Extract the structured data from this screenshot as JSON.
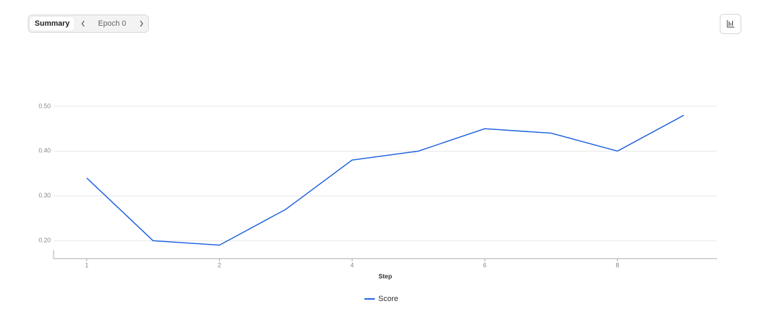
{
  "toolbar": {
    "summary": "Summary",
    "epoch": "Epoch 0"
  },
  "chart_data": {
    "type": "line",
    "x_label": "Step",
    "categories": [
      "1",
      null,
      "2",
      null,
      "4",
      null,
      "6",
      null,
      "8",
      null
    ],
    "series": [
      {
        "name": "Score",
        "color": "#1f63e0",
        "values": [
          0.34,
          0.2,
          0.19,
          0.27,
          0.38,
          0.4,
          0.45,
          0.44,
          0.4,
          0.48
        ]
      }
    ],
    "ylim": [
      0.16,
      0.52
    ],
    "yticks": [
      {
        "value": 0.2,
        "label": "0.20"
      },
      {
        "value": 0.3,
        "label": "0.30"
      },
      {
        "value": 0.4,
        "label": "0.40"
      },
      {
        "value": 0.5,
        "label": "0.50"
      }
    ],
    "grid": true,
    "legend": "bottom"
  }
}
